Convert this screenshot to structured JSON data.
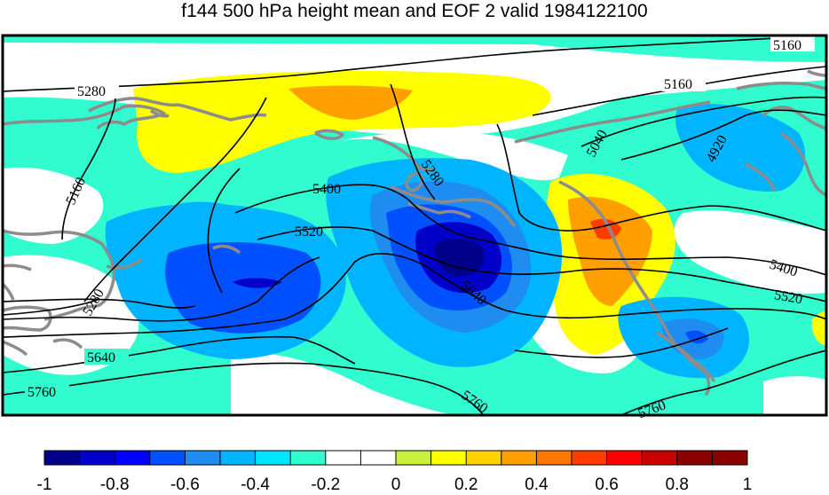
{
  "title": "f144 500 hPa height mean and EOF 2 valid 1984122100",
  "contour_labels": [
    "5280",
    "5160",
    "5040",
    "4920",
    "5160",
    "5280",
    "5400",
    "5520",
    "5640",
    "5160",
    "5280",
    "5400",
    "5520",
    "5640",
    "5760",
    "5760",
    "5760"
  ],
  "colorbar": {
    "ticks": [
      "-1",
      "-0.8",
      "-0.6",
      "-0.4",
      "-0.2",
      "0",
      "0.2",
      "0.4",
      "0.6",
      "0.8",
      "1"
    ],
    "colors": [
      "#00008b",
      "#0000c8",
      "#0000ff",
      "#0050ff",
      "#1e8cf0",
      "#00b4ff",
      "#00e6ff",
      "#30fcd0",
      "#ffffff",
      "#ffffff",
      "#c8f03c",
      "#ffff00",
      "#ffd200",
      "#ffa000",
      "#ff7800",
      "#ff3c00",
      "#ff0000",
      "#c80000",
      "#8b0000",
      "#8b0000"
    ]
  },
  "colors": {
    "coastline": "#8c8c8c",
    "contour": "#000000",
    "frame": "#000000"
  }
}
